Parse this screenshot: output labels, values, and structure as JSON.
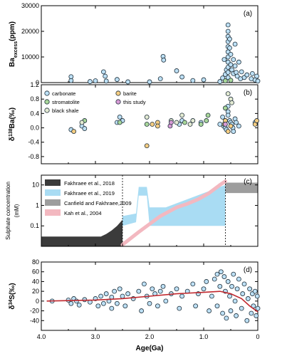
{
  "colors": {
    "carbonate": "#bde0f5",
    "stromatolite": "#a9d79a",
    "black_shale": "#e3ead2",
    "barite": "#f5cd82",
    "this_study": "#d79bd6",
    "point_edge": "#1f2f3a",
    "fakhraee_2018": "#3b3b3b",
    "fakhraee_2019": "#a9dcf3",
    "canfield_2009": "#9d9d9d",
    "kah_2004": "#f3b8c0",
    "trend_line": "#c0272d"
  },
  "chart_data": [
    {
      "type": "scatter",
      "panel": "(a)",
      "ylabel_main": "Ba",
      "ylabel_sub": "excess",
      "ylabel_unit": "(ppm)",
      "ylim": [
        0,
        30000
      ],
      "yticks": [
        "0",
        "10000",
        "20000",
        "30000"
      ],
      "xlim": [
        4.0,
        0.0
      ],
      "x_reversed": true,
      "series": [
        {
          "name": "carbonate",
          "points": [
            [
              3.45,
              800
            ],
            [
              3.45,
              2300
            ],
            [
              3.1,
              400
            ],
            [
              3.0,
              700
            ],
            [
              2.85,
              4200
            ],
            [
              2.82,
              2500
            ],
            [
              2.8,
              600
            ],
            [
              2.6,
              1200
            ],
            [
              2.4,
              300
            ],
            [
              2.0,
              300
            ],
            [
              1.8,
              1500
            ],
            [
              1.75,
              10200
            ],
            [
              1.74,
              8800
            ],
            [
              1.5,
              4600
            ],
            [
              1.4,
              2200
            ],
            [
              1.2,
              800
            ],
            [
              1.0,
              1100
            ],
            [
              0.7,
              400
            ],
            [
              0.65,
              1800
            ],
            [
              0.62,
              9000
            ],
            [
              0.6,
              3200
            ],
            [
              0.58,
              5000
            ],
            [
              0.55,
              22500
            ],
            [
              0.55,
              20000
            ],
            [
              0.55,
              18000
            ],
            [
              0.55,
              16000
            ],
            [
              0.55,
              14000
            ],
            [
              0.55,
              12000
            ],
            [
              0.55,
              10000
            ],
            [
              0.55,
              8000
            ],
            [
              0.55,
              6000
            ],
            [
              0.55,
              4000
            ],
            [
              0.55,
              2000
            ],
            [
              0.52,
              17000
            ],
            [
              0.52,
              13500
            ],
            [
              0.5,
              11000
            ],
            [
              0.5,
              7000
            ],
            [
              0.48,
              5000
            ],
            [
              0.45,
              9000
            ],
            [
              0.45,
              3500
            ],
            [
              0.42,
              15000
            ],
            [
              0.42,
              6500
            ],
            [
              0.4,
              4000
            ],
            [
              0.38,
              2500
            ],
            [
              0.35,
              8000
            ],
            [
              0.32,
              1500
            ],
            [
              0.3,
              4200
            ],
            [
              0.25,
              2000
            ],
            [
              0.2,
              3000
            ],
            [
              0.12,
              1500
            ],
            [
              0.1,
              3500
            ],
            [
              0.05,
              1000
            ],
            [
              0.02,
              2500
            ],
            [
              0.0,
              600
            ]
          ]
        },
        {
          "name": "stromatolite",
          "points": [
            [
              0.6,
              700
            ],
            [
              0.5,
              900
            ]
          ]
        }
      ]
    },
    {
      "type": "scatter",
      "panel": "(b)",
      "ylabel_main": "δ",
      "ylabel_sup": "138",
      "ylabel_rest": "Ba(‰)",
      "ylim": [
        -1.0,
        1.2
      ],
      "yticks": [
        "-0.8",
        "-0.4",
        "0.0",
        "0.4",
        "0.8",
        "1.2"
      ],
      "xlim": [
        4.0,
        0.0
      ],
      "x_reversed": true,
      "legend": [
        "carbonate",
        "stromatolite",
        "black shale",
        "barite",
        "this study"
      ],
      "series": [
        {
          "name": "carbonate",
          "points": [
            [
              3.45,
              -0.05
            ],
            [
              3.25,
              0.05
            ],
            [
              3.2,
              -0.02
            ],
            [
              2.6,
              0.15
            ],
            [
              2.55,
              0.3
            ],
            [
              2.5,
              0.2
            ],
            [
              1.45,
              0.1
            ],
            [
              1.4,
              0.2
            ],
            [
              1.05,
              0.15
            ],
            [
              0.7,
              0.1
            ],
            [
              0.65,
              0.3
            ],
            [
              0.63,
              0.05
            ],
            [
              0.6,
              0.0
            ],
            [
              0.58,
              -0.05
            ],
            [
              0.55,
              0.45
            ],
            [
              0.55,
              0.6
            ],
            [
              0.55,
              0.35
            ],
            [
              0.52,
              0.2
            ],
            [
              0.5,
              0.15
            ],
            [
              0.48,
              0.1
            ],
            [
              0.46,
              0.0
            ],
            [
              0.45,
              -0.1
            ],
            [
              0.42,
              0.25
            ],
            [
              0.4,
              0.15
            ],
            [
              0.35,
              0.05
            ],
            [
              0.05,
              0.15
            ]
          ]
        },
        {
          "name": "stromatolite",
          "points": [
            [
              3.2,
              0.2
            ],
            [
              2.55,
              0.15
            ],
            [
              2.05,
              0.1
            ],
            [
              1.35,
              0.15
            ],
            [
              1.05,
              0.1
            ],
            [
              0.95,
              0.2
            ],
            [
              0.92,
              0.35
            ],
            [
              0.6,
              0.55
            ]
          ]
        },
        {
          "name": "black shale",
          "points": [
            [
              3.25,
              0.15
            ],
            [
              2.05,
              0.3
            ],
            [
              1.6,
              0.2
            ],
            [
              1.5,
              0.15
            ],
            [
              1.4,
              0.35
            ],
            [
              1.25,
              0.1
            ],
            [
              1.2,
              0.2
            ],
            [
              0.55,
              0.95
            ],
            [
              0.5,
              0.8
            ],
            [
              0.48,
              0.7
            ]
          ]
        },
        {
          "name": "barite",
          "points": [
            [
              3.4,
              -0.1
            ],
            [
              2.05,
              -0.5
            ],
            [
              1.95,
              0.1
            ],
            [
              1.85,
              0.15
            ],
            [
              1.85,
              0.05
            ],
            [
              0.62,
              0.1
            ],
            [
              0.6,
              0.2
            ],
            [
              0.55,
              -0.1
            ],
            [
              0.5,
              0.05
            ],
            [
              0.05,
              0.1
            ],
            [
              0.02,
              0.2
            ]
          ]
        },
        {
          "name": "this study",
          "points": [
            [
              1.62,
              0.05
            ],
            [
              1.6,
              0.15
            ],
            [
              0.6,
              0.1
            ]
          ]
        }
      ]
    },
    {
      "type": "area",
      "panel": "(c)",
      "ylabel": "Sulphate concentration",
      "ylabel2": "(mM)",
      "yscale": "log",
      "ylim": [
        0.01,
        30
      ],
      "yticks": [
        "0.1",
        "1",
        "10"
      ],
      "xlim": [
        4.0,
        0.0
      ],
      "x_reversed": true,
      "vertical_lines_x": [
        2.5,
        0.6
      ],
      "series": [
        {
          "name": "Fakhraee et al., 2018",
          "kind": "fill_to_bottom",
          "x": [
            4.0,
            2.9,
            2.8,
            2.7,
            2.6,
            2.5
          ],
          "y": [
            0.03,
            0.03,
            0.04,
            0.06,
            0.1,
            0.2
          ]
        },
        {
          "name": "Fakhraee et al., 2019",
          "kind": "band",
          "x": [
            2.5,
            2.25,
            2.2,
            2.05,
            2.0,
            1.75,
            1.7,
            0.6
          ],
          "y_low": [
            0.1,
            0.15,
            3,
            3,
            0.1,
            0.1,
            0.1,
            0.1
          ],
          "y_high": [
            0.3,
            0.4,
            8,
            8,
            0.8,
            0.8,
            0.8,
            10
          ]
        },
        {
          "name": "Canfield and Fakhraee,2009",
          "kind": "band",
          "x": [
            0.6,
            0.0
          ],
          "y_low": [
            4,
            4
          ],
          "y_high": [
            13,
            13
          ]
        },
        {
          "name": "Kah et al., 2004",
          "kind": "line",
          "x": [
            2.5,
            2.2,
            1.8,
            1.5,
            1.3,
            1.1,
            0.9,
            0.7,
            0.6
          ],
          "y": [
            0.012,
            0.05,
            0.3,
            0.8,
            1.2,
            2,
            4,
            10,
            15
          ]
        }
      ]
    },
    {
      "type": "scatter",
      "panel": "(d)",
      "ylabel_main": "δ",
      "ylabel_sup": "34",
      "ylabel_rest": "S(‰)",
      "ylim": [
        -60,
        80
      ],
      "yticks": [
        "-40",
        "-20",
        "0",
        "20",
        "40",
        "60",
        "80"
      ],
      "xlim": [
        4.0,
        0.0
      ],
      "x_reversed": true,
      "xticks": [
        "4.0",
        "3.0",
        "2.0",
        "1.0",
        "0"
      ],
      "xlabel": "Age(Ga)",
      "series": [
        {
          "name": "carbonate",
          "points": [
            [
              3.8,
              0
            ],
            [
              3.5,
              2
            ],
            [
              3.45,
              -5
            ],
            [
              3.4,
              5
            ],
            [
              3.35,
              0
            ],
            [
              3.3,
              -8
            ],
            [
              3.2,
              3
            ],
            [
              3.1,
              -2
            ],
            [
              3.0,
              5
            ],
            [
              2.95,
              -10
            ],
            [
              2.9,
              10
            ],
            [
              2.85,
              -5
            ],
            [
              2.8,
              15
            ],
            [
              2.75,
              0
            ],
            [
              2.7,
              -15
            ],
            [
              2.7,
              8
            ],
            [
              2.65,
              20
            ],
            [
              2.6,
              -5
            ],
            [
              2.55,
              25
            ],
            [
              2.5,
              10
            ],
            [
              2.45,
              -10
            ],
            [
              2.4,
              15
            ],
            [
              2.3,
              5
            ],
            [
              2.2,
              20
            ],
            [
              2.15,
              -20
            ],
            [
              2.1,
              35
            ],
            [
              2.05,
              10
            ],
            [
              2.0,
              -5
            ],
            [
              1.95,
              25
            ],
            [
              1.9,
              15
            ],
            [
              1.85,
              -10
            ],
            [
              1.8,
              20
            ],
            [
              1.75,
              30
            ],
            [
              1.7,
              0
            ],
            [
              1.6,
              15
            ],
            [
              1.5,
              25
            ],
            [
              1.45,
              -15
            ],
            [
              1.4,
              10
            ],
            [
              1.3,
              20
            ],
            [
              1.2,
              35
            ],
            [
              1.15,
              -10
            ],
            [
              1.1,
              15
            ],
            [
              1.0,
              25
            ],
            [
              0.95,
              40
            ],
            [
              0.9,
              -20
            ],
            [
              0.85,
              10
            ],
            [
              0.8,
              45
            ],
            [
              0.75,
              55
            ],
            [
              0.75,
              -10
            ],
            [
              0.7,
              30
            ],
            [
              0.68,
              60
            ],
            [
              0.65,
              -25
            ],
            [
              0.62,
              50
            ],
            [
              0.6,
              20
            ],
            [
              0.58,
              -35
            ],
            [
              0.55,
              40
            ],
            [
              0.52,
              10
            ],
            [
              0.5,
              -20
            ],
            [
              0.48,
              30
            ],
            [
              0.45,
              55
            ],
            [
              0.42,
              0
            ],
            [
              0.4,
              -30
            ],
            [
              0.38,
              25
            ],
            [
              0.35,
              45
            ],
            [
              0.3,
              -15
            ],
            [
              0.28,
              15
            ],
            [
              0.25,
              35
            ],
            [
              0.2,
              -40
            ],
            [
              0.18,
              5
            ],
            [
              0.15,
              25
            ],
            [
              0.12,
              -25
            ],
            [
              0.1,
              15
            ],
            [
              0.08,
              -10
            ],
            [
              0.05,
              20
            ],
            [
              0.03,
              -30
            ],
            [
              0.01,
              10
            ],
            [
              0.0,
              -15
            ]
          ]
        },
        {
          "name": "trend",
          "kind": "line",
          "points": [
            [
              3.9,
              0
            ],
            [
              3.0,
              2
            ],
            [
              2.5,
              5
            ],
            [
              2.0,
              10
            ],
            [
              1.5,
              15
            ],
            [
              1.0,
              18
            ],
            [
              0.7,
              20
            ],
            [
              0.5,
              15
            ],
            [
              0.3,
              5
            ],
            [
              0.15,
              -10
            ],
            [
              0.0,
              -22
            ]
          ]
        }
      ]
    }
  ]
}
